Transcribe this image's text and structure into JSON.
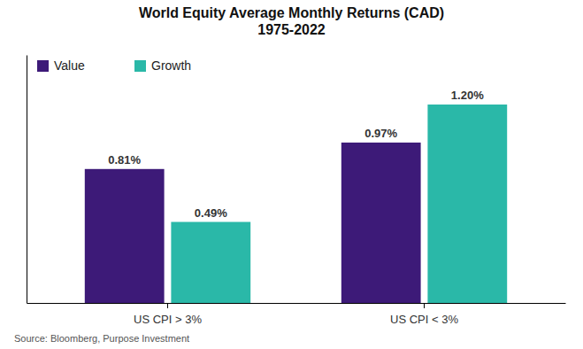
{
  "chart_data": {
    "type": "bar",
    "title": "World Equity Average Monthly Returns (CAD)\n1975-2022",
    "categories": [
      "US CPI > 3%",
      "US CPI < 3%"
    ],
    "series": [
      {
        "name": "Value",
        "color": "#3d1a78",
        "values": [
          0.81,
          0.97
        ],
        "value_labels": [
          "0.81%",
          "0.97%"
        ]
      },
      {
        "name": "Growth",
        "color": "#2ab8a8",
        "values": [
          0.49,
          1.2
        ],
        "value_labels": [
          "0.49%",
          "1.20%"
        ]
      }
    ],
    "ylim": [
      0,
      1.5
    ],
    "yticks": [],
    "tick_labels": "x",
    "grid": false,
    "legend": "upper left",
    "data_labels": true,
    "annotations": [
      "Source: Bloomberg, Purpose Investment"
    ]
  }
}
